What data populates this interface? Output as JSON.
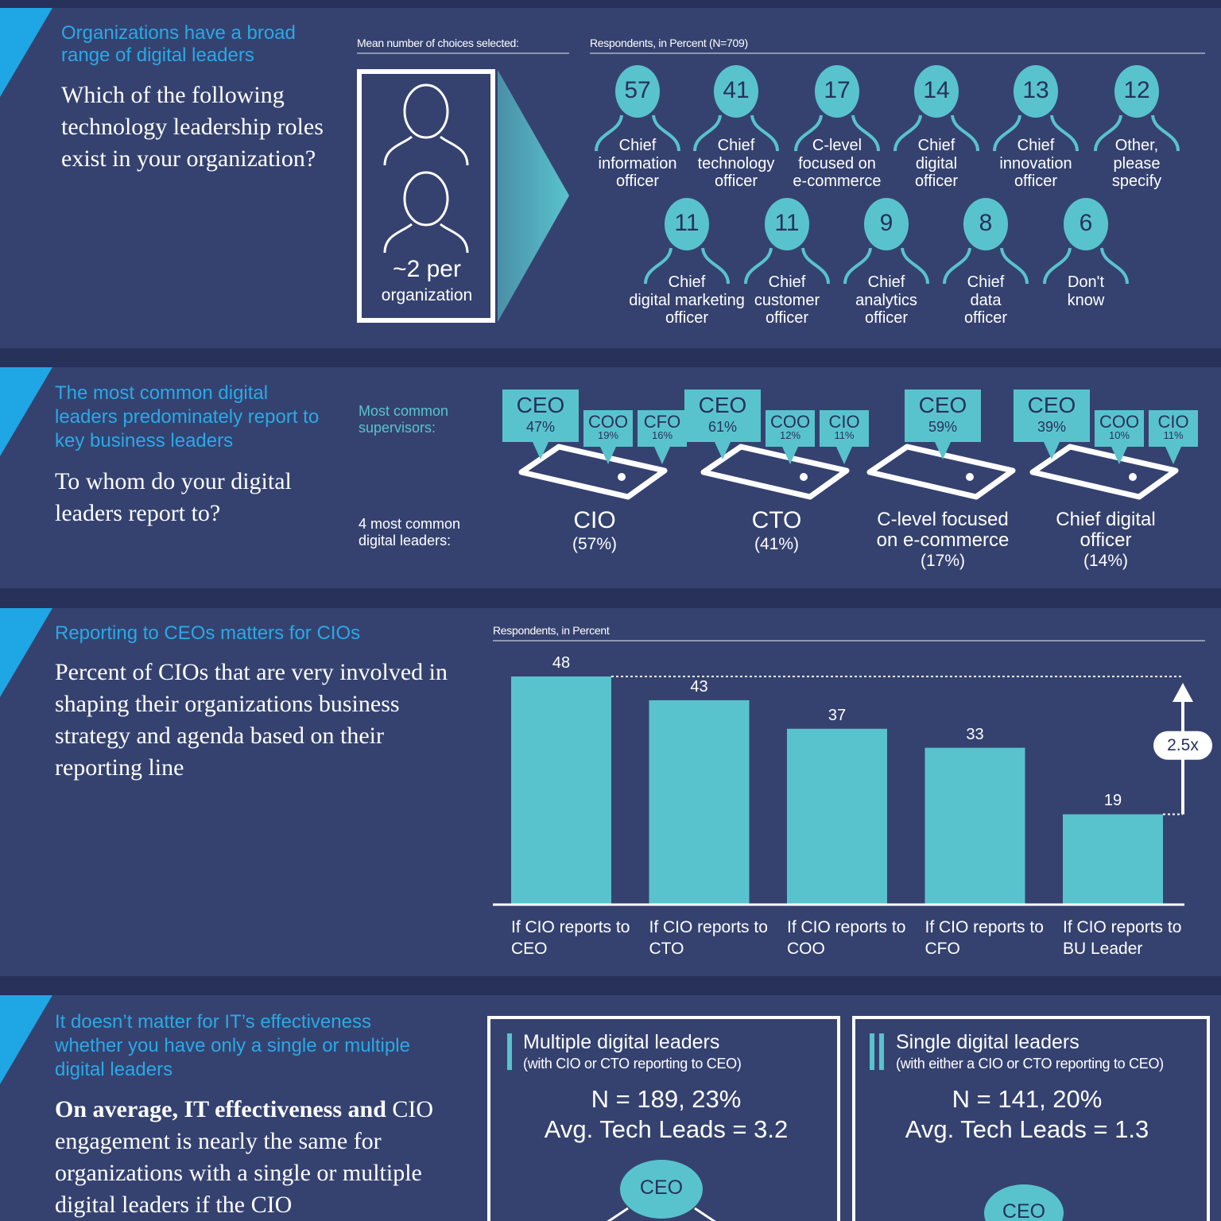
{
  "roles_section": {
    "headline": "Organizations have a broad range of digital leaders",
    "question": "Which of the following technology leadership roles exist in your organization?",
    "mean_label": "Mean number of choices selected:",
    "mean_value": "~2 per",
    "mean_unit": "organization",
    "respondents_label": "Respondents, in Percent (N=709)",
    "roles": [
      {
        "value": 57,
        "label_lines": [
          "Chief",
          "information",
          "officer"
        ]
      },
      {
        "value": 41,
        "label_lines": [
          "Chief",
          "technology",
          "officer"
        ]
      },
      {
        "value": 17,
        "label_lines": [
          "C-level",
          "focused on",
          "e-commerce"
        ]
      },
      {
        "value": 14,
        "label_lines": [
          "Chief",
          "digital",
          "officer"
        ]
      },
      {
        "value": 13,
        "label_lines": [
          "Chief",
          "innovation",
          "officer"
        ]
      },
      {
        "value": 12,
        "label_lines": [
          "Other,",
          "please",
          "specify"
        ]
      },
      {
        "value": 11,
        "label_lines": [
          "Chief",
          "digital marketing",
          "officer"
        ]
      },
      {
        "value": 11,
        "label_lines": [
          "Chief",
          "customer",
          "officer"
        ]
      },
      {
        "value": 9,
        "label_lines": [
          "Chief",
          "analytics",
          "officer"
        ]
      },
      {
        "value": 8,
        "label_lines": [
          "Chief",
          "data",
          "officer"
        ]
      },
      {
        "value": 6,
        "label_lines": [
          "Don't",
          "know"
        ]
      }
    ]
  },
  "reporting_section": {
    "headline": "The most common digital leaders predominately report to key business leaders",
    "question": "To whom do your digital leaders report to?",
    "supervisors_label": "Most common supervisors:",
    "leaders_label": "4 most common digital leaders:",
    "leaders": [
      {
        "name_lines": [
          "CIO"
        ],
        "share": "(57%)",
        "supervisors": [
          {
            "role": "CEO",
            "pct": "47%"
          },
          {
            "role": "COO",
            "pct": "19%"
          },
          {
            "role": "CFO",
            "pct": "16%"
          }
        ]
      },
      {
        "name_lines": [
          "CTO"
        ],
        "share": "(41%)",
        "supervisors": [
          {
            "role": "CEO",
            "pct": "61%"
          },
          {
            "role": "COO",
            "pct": "12%"
          },
          {
            "role": "CIO",
            "pct": "11%"
          }
        ]
      },
      {
        "name_lines": [
          "C-level focused",
          "on e-commerce"
        ],
        "share": "(17%)",
        "supervisors": [
          {
            "role": "CEO",
            "pct": "59%"
          }
        ]
      },
      {
        "name_lines": [
          "Chief digital",
          "officer"
        ],
        "share": "(14%)",
        "supervisors": [
          {
            "role": "CEO",
            "pct": "39%"
          },
          {
            "role": "COO",
            "pct": "10%"
          },
          {
            "role": "CIO",
            "pct": "11%"
          }
        ]
      }
    ]
  },
  "chart_data": {
    "type": "bar",
    "title": "Reporting to CEOs matters for CIOs",
    "subtitle": "Percent of CIOs that are very involved in shaping their organizations business strategy and agenda based on their reporting line",
    "ylabel": "Respondents, in Percent",
    "categories": [
      "If CIO reports to CEO",
      "If CIO reports to CTO",
      "If CIO reports to COO",
      "If CIO reports to CFO",
      "If CIO reports to BU Leader"
    ],
    "values": [
      48,
      43,
      37,
      33,
      19
    ],
    "color": "#59c3cd",
    "annotation": "2.5x"
  },
  "effectiveness_section": {
    "headline": "It doesn’t matter for IT’s effectiveness whether you have only a single or multiple digital leaders",
    "lead": "On average, IT effectiveness and",
    "text": "CIO engagement is nearly the same for organizations with a single or multiple digital leaders if the CIO",
    "boxes": [
      {
        "title": "Multiple digital leaders",
        "subtitle": "(with CIO or CTO reporting to CEO)",
        "n": "N = 189, 23%",
        "avg": "Avg. Tech Leads = 3.2",
        "node": "CEO"
      },
      {
        "title": "Single digital leaders",
        "subtitle": "(with either a CIO or CTO reporting to CEO)",
        "n": "N = 141, 20%",
        "avg": "Avg. Tech Leads = 1.3",
        "node": "CEO"
      }
    ]
  }
}
